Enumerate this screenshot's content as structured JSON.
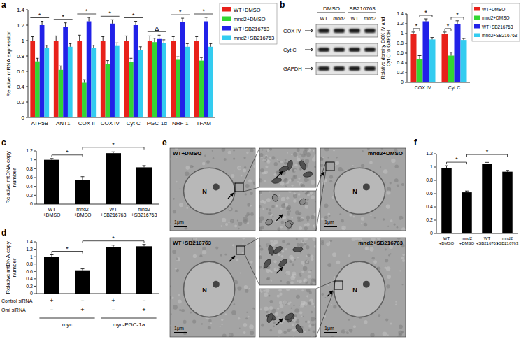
{
  "panel_labels": [
    "a",
    "b",
    "c",
    "d",
    "e",
    "f"
  ],
  "chart_data": [
    {
      "type": "bar",
      "ylabel": "Relative mRNA expression",
      "categories": [
        "ATP5B",
        "ANT1",
        "COX II",
        "COX IV",
        "Cyt C",
        "PGC-1α",
        "NRF-1",
        "TFAM"
      ],
      "series": [
        {
          "name": "WT+DMSO",
          "color": "#e8211b",
          "values": [
            1,
            1,
            1,
            1,
            1,
            1,
            1,
            1
          ],
          "errors": [
            0.05,
            0.06,
            0.07,
            0.05,
            0.06,
            0.06,
            0.05,
            0.05
          ]
        },
        {
          "name": "mnd2+DMSO",
          "color": "#33d633",
          "values": [
            0.73,
            0.62,
            0.45,
            0.7,
            0.72,
            0.98,
            0.75,
            0.74
          ],
          "errors": [
            0.04,
            0.05,
            0.04,
            0.04,
            0.05,
            0.05,
            0.04,
            0.04
          ]
        },
        {
          "name": "WT+SB216763",
          "color": "#2121e8",
          "values": [
            1.2,
            1.18,
            1.25,
            1.22,
            1.2,
            1.02,
            1.24,
            1.25
          ],
          "errors": [
            0.05,
            0.05,
            0.05,
            0.05,
            0.05,
            0.05,
            0.05,
            0.05
          ]
        },
        {
          "name": "mnd2+SB216763",
          "color": "#33ccf0",
          "values": [
            0.9,
            0.92,
            0.9,
            0.93,
            0.88,
            0.97,
            0.92,
            0.92
          ],
          "errors": [
            0.04,
            0.04,
            0.04,
            0.04,
            0.04,
            0.04,
            0.04,
            0.04
          ]
        }
      ],
      "ylim": [
        0,
        1.4
      ],
      "yticks": [
        0,
        0.2,
        0.4,
        0.6,
        0.8,
        1,
        1.2,
        1.4
      ],
      "grid": false,
      "legend": "right",
      "annotations": [
        "*",
        "*",
        "*",
        "*",
        "*",
        "Δ",
        "*",
        "*"
      ]
    },
    {
      "type": "bar",
      "ylabel": "Relative density COX IV and Cyt C to GAPDH",
      "categories": [
        "COX IV",
        "Cyt C"
      ],
      "series": [
        {
          "name": "WT+DMSO",
          "color": "#e8211b",
          "values": [
            1,
            1
          ],
          "errors": [
            0.03,
            0.03
          ]
        },
        {
          "name": "mnd2+DMSO",
          "color": "#33d633",
          "values": [
            0.48,
            0.55
          ],
          "errors": [
            0.07,
            0.07
          ]
        },
        {
          "name": "WT+SB216763",
          "color": "#2121e8",
          "values": [
            1.25,
            1.2
          ],
          "errors": [
            0.05,
            0.06
          ]
        },
        {
          "name": "mnd2+SB216763",
          "color": "#33ccf0",
          "values": [
            0.88,
            0.87
          ],
          "errors": [
            0.04,
            0.03
          ]
        }
      ],
      "ylim": [
        0,
        1.4
      ],
      "yticks": [
        0,
        0.2,
        0.4,
        0.6,
        0.8,
        1,
        1.2,
        1.4
      ],
      "grid": false,
      "legend": "right",
      "annotations": [
        {
          "text": "*",
          "category": 0,
          "between": [
            0,
            1
          ]
        },
        {
          "text": "*",
          "category": 0,
          "between": [
            1,
            3
          ]
        },
        {
          "text": "*",
          "category": 1,
          "between": [
            0,
            1
          ]
        },
        {
          "text": "*",
          "category": 1,
          "between": [
            1,
            3
          ]
        }
      ]
    },
    {
      "type": "bar",
      "ylabel": "Relative mtDNA copy number",
      "categories": [
        "WT +DMSO",
        "mnd2 +DMSO",
        "WT +SB216763",
        "mnd2 +SB216763"
      ],
      "values": [
        1,
        0.55,
        1.15,
        0.83
      ],
      "errors": [
        0.03,
        0.07,
        0.03,
        0.04
      ],
      "color": "#000000",
      "ylim": [
        0,
        1.2
      ],
      "yticks": [
        0,
        0.2,
        0.4,
        0.6,
        0.8,
        1,
        1.2
      ],
      "grid": false,
      "annotations": [
        {
          "text": "*",
          "between": [
            0,
            1
          ]
        },
        {
          "text": "*",
          "between": [
            1,
            3
          ]
        }
      ]
    },
    {
      "type": "bar",
      "ylabel": "Relative mtDNA copy number",
      "categories": [
        null,
        null,
        null,
        null
      ],
      "values": [
        1,
        0.63,
        1.25,
        1.28
      ],
      "errors": [
        0.05,
        0.04,
        0.06,
        0.05
      ],
      "color": "#000000",
      "ylim": [
        0,
        1.4
      ],
      "yticks": [
        0,
        0.2,
        0.4,
        0.6,
        0.8,
        1,
        1.2,
        1.4
      ],
      "grid": false,
      "annotations": [
        {
          "text": "*",
          "between": [
            0,
            1
          ]
        },
        {
          "text": "*",
          "between": [
            1,
            3
          ]
        }
      ],
      "condition_rows": [
        {
          "label": "Control siRNA",
          "cells": [
            "+",
            "−",
            "+",
            "−"
          ]
        },
        {
          "label": "Omi siRNA",
          "cells": [
            "−",
            "+",
            "−",
            "+"
          ]
        }
      ],
      "condition_groups": [
        {
          "label": "myc",
          "span": [
            0,
            1
          ]
        },
        {
          "label": "myc-PGC-1a",
          "span": [
            2,
            3
          ]
        }
      ]
    },
    {
      "type": "bar",
      "categories": [
        "WT +DMSO",
        "mnd2 +DMSO",
        "WT +SB216763",
        "mnd2 +SB216763"
      ],
      "values": [
        0.98,
        0.62,
        1.05,
        0.93
      ],
      "errors": [
        0.04,
        0.02,
        0.02,
        0.02
      ],
      "color": "#000000",
      "ylim": [
        0,
        1.2
      ],
      "yticks": [
        0,
        0.2,
        0.4,
        0.6,
        0.8,
        1,
        1.2
      ],
      "grid": false,
      "annotations": [
        {
          "text": "*",
          "between": [
            0,
            1
          ]
        },
        {
          "text": "*",
          "between": [
            1,
            3
          ]
        }
      ]
    }
  ],
  "blot": {
    "treatments": [
      "DMSO",
      "SB216763"
    ],
    "lanes": [
      "WT",
      "mnd2",
      "WT",
      "mnd2"
    ],
    "rows": [
      "COX IV",
      "Cyt C",
      "GAPDH"
    ]
  },
  "micrographs": {
    "images": [
      {
        "label": "WT+DMSO"
      },
      {
        "label": "mnd2+DMSO"
      },
      {
        "label": "WT+SB216763"
      },
      {
        "label": "mnd2+SB216763"
      }
    ],
    "nucleus": "N",
    "scale_bar": "1μm"
  }
}
